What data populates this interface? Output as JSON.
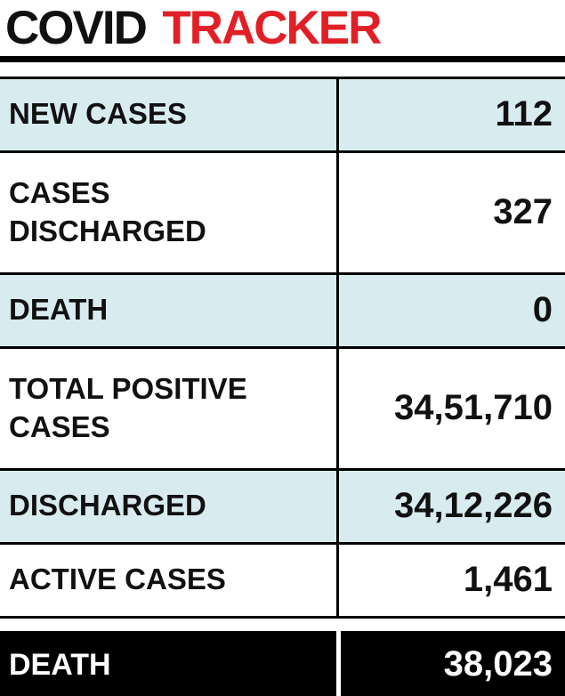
{
  "title": {
    "covid": "COVID",
    "tracker": "TRACKER"
  },
  "colors": {
    "accent_red": "#e21f26",
    "row_tint": "#d8ecf0",
    "total_row_bg": "#000000",
    "total_row_text": "#ffffff"
  },
  "table": {
    "rows": [
      {
        "label": "NEW CASES",
        "value": "112"
      },
      {
        "label": "CASES DISCHARGED",
        "value": "327"
      },
      {
        "label": "DEATH",
        "value": "0"
      },
      {
        "label": "TOTAL POSITIVE CASES",
        "value": "34,51,710"
      },
      {
        "label": "DISCHARGED",
        "value": "34,12,226"
      },
      {
        "label": "ACTIVE CASES",
        "value": "1,461"
      },
      {
        "label": "DEATH",
        "value": "38,023"
      }
    ]
  },
  "chart_data": {
    "type": "table",
    "title": "COVID TRACKER",
    "categories": [
      "NEW CASES",
      "CASES DISCHARGED",
      "DEATH",
      "TOTAL POSITIVE CASES",
      "DISCHARGED",
      "ACTIVE CASES",
      "DEATH"
    ],
    "values": [
      112,
      327,
      0,
      3451710,
      3412226,
      1461,
      38023
    ],
    "display_values": [
      "112",
      "327",
      "0",
      "34,51,710",
      "34,12,226",
      "1,461",
      "38,023"
    ],
    "legend_position": "none",
    "grid": "row-separators"
  }
}
